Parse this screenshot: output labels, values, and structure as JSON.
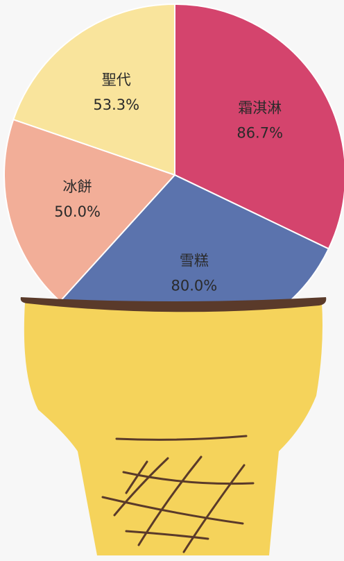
{
  "chart_data": {
    "type": "pie",
    "categories": [
      "霜淇淋",
      "雪糕",
      "冰餅",
      "聖代"
    ],
    "values": [
      86.7,
      80.0,
      50.0,
      53.3
    ],
    "value_labels": [
      "86.7%",
      "80.0%",
      "50.0%",
      "53.3%"
    ],
    "colors": [
      "#d4446d",
      "#5b73ad",
      "#f2ae98",
      "#f9e49c"
    ]
  }
}
